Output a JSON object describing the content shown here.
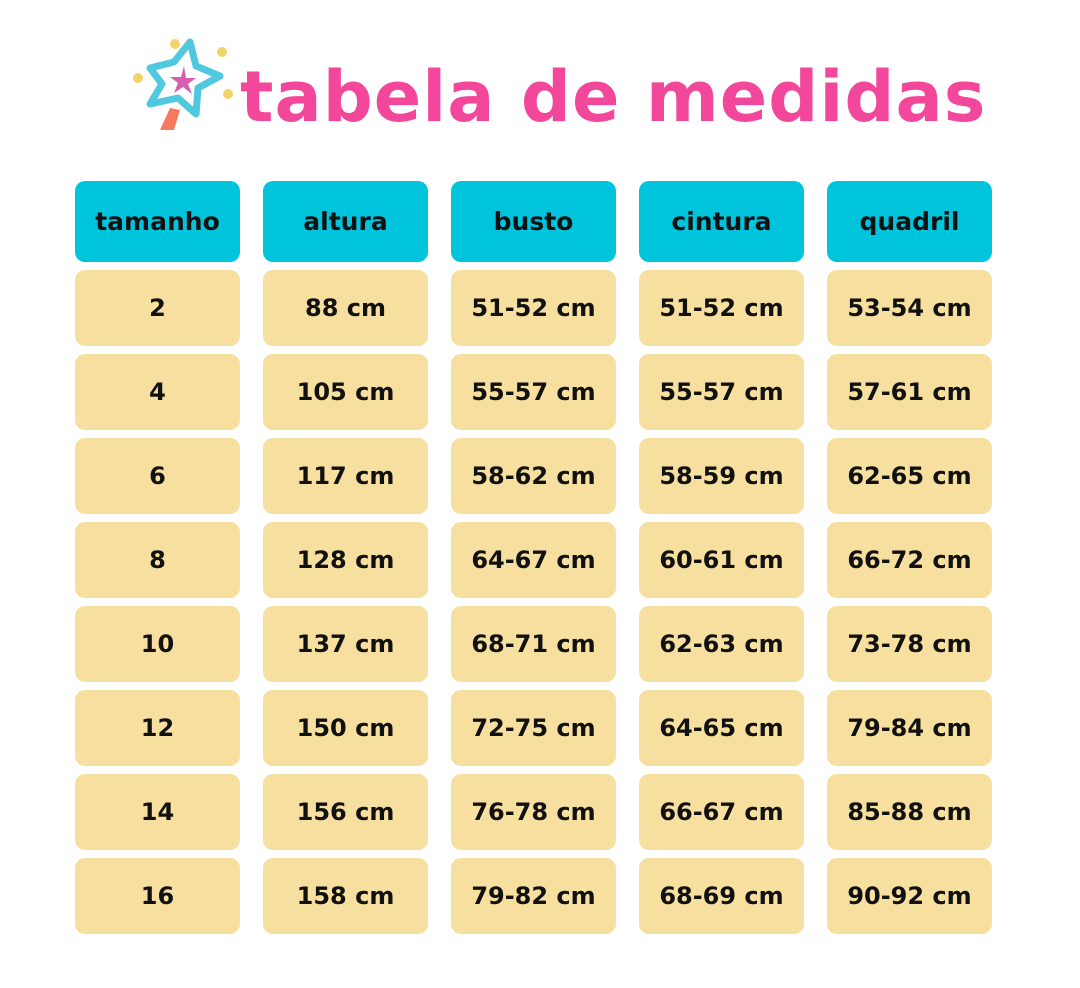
{
  "title": "tabela de medidas",
  "logo": {
    "icon": "magic-wand-star-icon",
    "colors": [
      "#4fc8e0",
      "#d65fb0",
      "#f2d36a",
      "#f47a5e"
    ]
  },
  "colors": {
    "title": "#f2479b",
    "header_bg": "#00c4dc",
    "cell_bg": "#f6df9f"
  },
  "table": {
    "headers": [
      "tamanho",
      "altura",
      "busto",
      "cintura",
      "quadril"
    ],
    "rows": [
      [
        "2",
        "88 cm",
        "51-52 cm",
        "51-52 cm",
        "53-54 cm"
      ],
      [
        "4",
        "105 cm",
        "55-57 cm",
        "55-57 cm",
        "57-61 cm"
      ],
      [
        "6",
        "117 cm",
        "58-62 cm",
        "58-59 cm",
        "62-65 cm"
      ],
      [
        "8",
        "128 cm",
        "64-67 cm",
        "60-61 cm",
        "66-72 cm"
      ],
      [
        "10",
        "137 cm",
        "68-71 cm",
        "62-63 cm",
        "73-78 cm"
      ],
      [
        "12",
        "150 cm",
        "72-75 cm",
        "64-65 cm",
        "79-84 cm"
      ],
      [
        "14",
        "156 cm",
        "76-78 cm",
        "66-67 cm",
        "85-88 cm"
      ],
      [
        "16",
        "158 cm",
        "79-82 cm",
        "68-69 cm",
        "90-92 cm"
      ]
    ]
  }
}
